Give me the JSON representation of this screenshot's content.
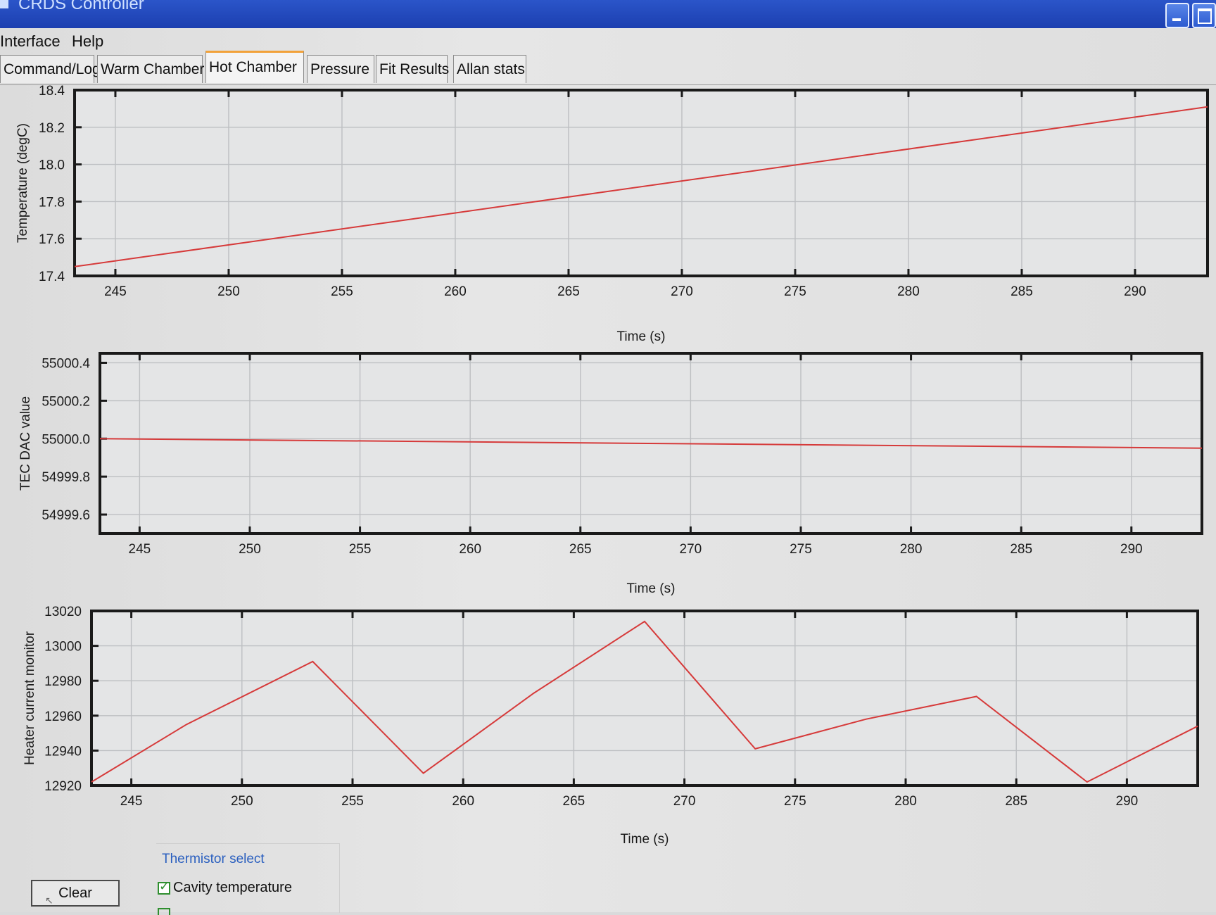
{
  "window": {
    "title": "CRDS Controller"
  },
  "menu": [
    "Interface",
    "Help"
  ],
  "tabs": [
    {
      "label": "Command/Log",
      "active": false
    },
    {
      "label": "Warm Chamber",
      "active": false
    },
    {
      "label": "Hot Chamber",
      "active": true
    },
    {
      "label": "Pressure",
      "active": false
    },
    {
      "label": "Fit Results",
      "active": false
    },
    {
      "label": "Allan stats",
      "active": false
    }
  ],
  "controls": {
    "clear_label": "Clear",
    "thermistor_group_label": "Thermistor select",
    "cavity_temperature_label": "Cavity temperature",
    "cavity_temperature_checked": true
  },
  "colors": {
    "series": "#d63a3a",
    "titlebar": "#1f45b8",
    "group_label": "#2a5fbf"
  },
  "chart_data": [
    {
      "type": "line",
      "xlabel": "Time (s)",
      "ylabel": "Temperature (degC)",
      "xlim": [
        243.2,
        293.2
      ],
      "ylim": [
        17.4,
        18.4
      ],
      "xticks": [
        245,
        250,
        255,
        260,
        265,
        270,
        275,
        280,
        285,
        290
      ],
      "yticks": [
        "17.4",
        "17.6",
        "17.8",
        "18.0",
        "18.2",
        "18.4"
      ],
      "grid": true,
      "series": [
        {
          "x": [
            243.2,
            293.2
          ],
          "values": [
            17.45,
            18.31
          ]
        }
      ]
    },
    {
      "type": "line",
      "xlabel": "Time (s)",
      "ylabel": "TEC DAC value",
      "xlim": [
        243.2,
        293.2
      ],
      "ylim": [
        54999.5,
        55000.45
      ],
      "xticks": [
        245,
        250,
        255,
        260,
        265,
        270,
        275,
        280,
        285,
        290
      ],
      "yticks": [
        "54999.6",
        "54999.8",
        "55000.0",
        "55000.2",
        "55000.4"
      ],
      "grid": true,
      "series": [
        {
          "x": [
            243.2,
            293.2
          ],
          "values": [
            55000.0,
            54999.95
          ]
        }
      ]
    },
    {
      "type": "line",
      "xlabel": "Time (s)",
      "ylabel": "Heater current monitor",
      "xlim": [
        243.2,
        293.2
      ],
      "ylim": [
        12920,
        13020
      ],
      "xticks": [
        245,
        250,
        255,
        260,
        265,
        270,
        275,
        280,
        285,
        290
      ],
      "yticks": [
        "12920",
        "12940",
        "12960",
        "12980",
        "13000",
        "13020"
      ],
      "grid": true,
      "series": [
        {
          "x": [
            243.2,
            247.5,
            253.2,
            258.2,
            263.2,
            268.2,
            273.2,
            278.2,
            283.2,
            288.2,
            293.2
          ],
          "values": [
            12922,
            12955,
            12991,
            12927,
            12973,
            13014,
            12941,
            12958,
            12971,
            12922,
            12954
          ]
        }
      ]
    }
  ]
}
